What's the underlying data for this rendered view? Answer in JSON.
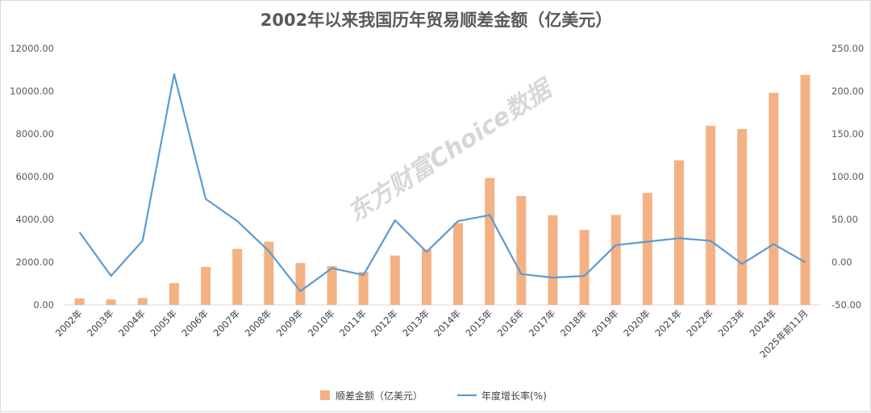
{
  "chart_data": {
    "type": "bar+line",
    "title": "2002年以来我国历年贸易顺差金额（亿美元）",
    "categories": [
      "2002年",
      "2003年",
      "2004年",
      "2005年",
      "2006年",
      "2007年",
      "2008年",
      "2009年",
      "2010年",
      "2011年",
      "2012年",
      "2013年",
      "2014年",
      "2015年",
      "2016年",
      "2017年",
      "2018年",
      "2019年",
      "2020年",
      "2021年",
      "2022年",
      "2023年",
      "2024年",
      "2025年前11月"
    ],
    "series": [
      {
        "name": "顺差金额（亿美元）",
        "type": "bar",
        "axis": "left",
        "color": "#f4b183",
        "values": [
          304,
          255,
          321,
          1020,
          1775,
          2618,
          2955,
          1957,
          1815,
          1549,
          2311,
          2590,
          3825,
          5939,
          5097,
          4196,
          3509,
          4211,
          5240,
          6764,
          8382,
          8231,
          9922,
          10758
        ]
      },
      {
        "name": "年度增长率(%)",
        "type": "line",
        "axis": "right",
        "color": "#5b9bd5",
        "values": [
          35,
          -16,
          25,
          220,
          74,
          48,
          13,
          -34,
          -7,
          -15,
          49,
          12,
          48,
          55,
          -14,
          -18,
          -16,
          20,
          24,
          28,
          25,
          -2,
          21,
          0
        ]
      }
    ],
    "y_left": {
      "ylim": [
        0,
        12000
      ],
      "ticks": [
        "0.00",
        "2000.00",
        "4000.00",
        "6000.00",
        "8000.00",
        "10000.00",
        "12000.00"
      ]
    },
    "y_right": {
      "ylim": [
        -50,
        250
      ],
      "ticks": [
        "-50.00",
        "0.00",
        "50.00",
        "100.00",
        "150.00",
        "200.00",
        "250.00"
      ]
    },
    "legend": "bottom-center",
    "grid": false
  },
  "watermark": "东方财富Choice数据"
}
